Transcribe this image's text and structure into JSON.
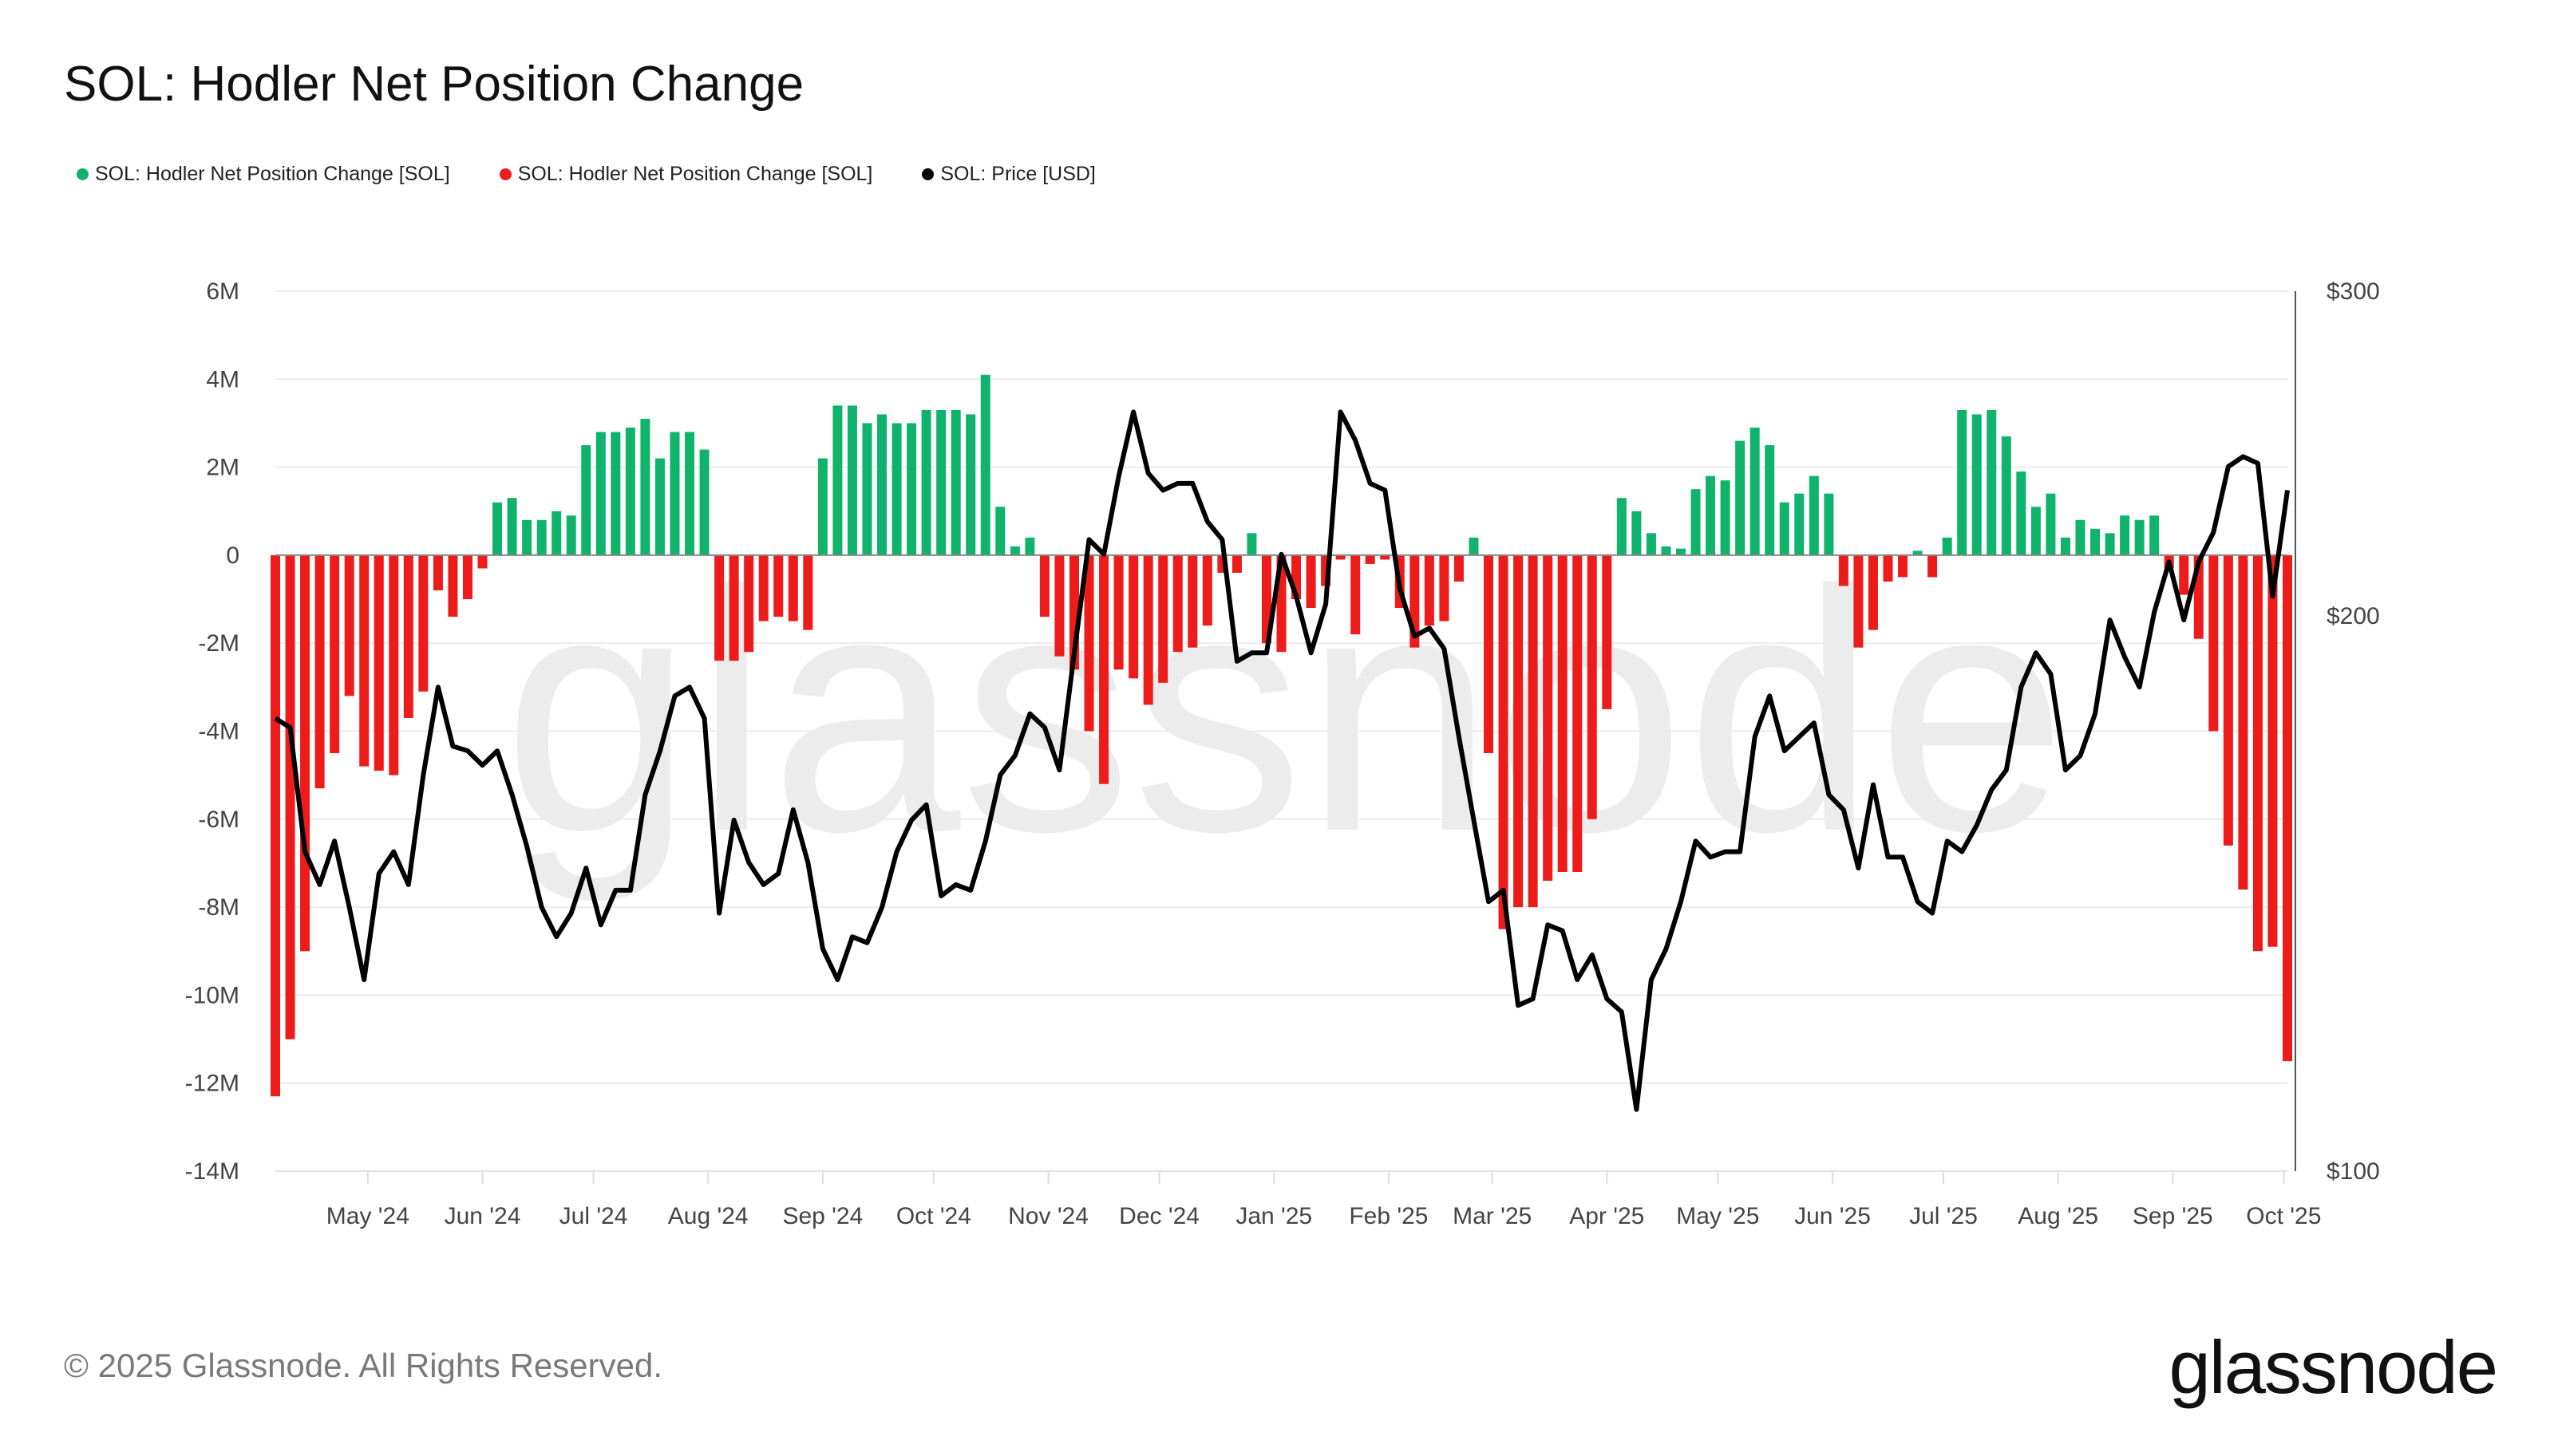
{
  "title": "SOL: Hodler Net Position Change",
  "legend": [
    {
      "label": "SOL: Hodler Net Position Change [SOL]",
      "color": "#10b36c"
    },
    {
      "label": "SOL: Hodler Net Position Change [SOL]",
      "color": "#ee1b1b"
    },
    {
      "label": "SOL: Price [USD]",
      "color": "#000000"
    }
  ],
  "footer": {
    "copyright": "© 2025 Glassnode. All Rights Reserved.",
    "logo": "glassnode",
    "watermark": "glassnode"
  },
  "chart_data": {
    "type": "bar+line",
    "title": "SOL: Hodler Net Position Change",
    "x_range": [
      "2024-04-06",
      "2025-10-02"
    ],
    "xticks": [
      {
        "label": "May '24",
        "date": "2024-05-01"
      },
      {
        "label": "Jun '24",
        "date": "2024-06-01"
      },
      {
        "label": "Jul '24",
        "date": "2024-07-01"
      },
      {
        "label": "Aug '24",
        "date": "2024-08-01"
      },
      {
        "label": "Sep '24",
        "date": "2024-09-01"
      },
      {
        "label": "Oct '24",
        "date": "2024-10-01"
      },
      {
        "label": "Nov '24",
        "date": "2024-11-01"
      },
      {
        "label": "Dec '24",
        "date": "2024-12-01"
      },
      {
        "label": "Jan '25",
        "date": "2025-01-01"
      },
      {
        "label": "Feb '25",
        "date": "2025-02-01"
      },
      {
        "label": "Mar '25",
        "date": "2025-03-01"
      },
      {
        "label": "Apr '25",
        "date": "2025-04-01"
      },
      {
        "label": "May '25",
        "date": "2025-05-01"
      },
      {
        "label": "Jun '25",
        "date": "2025-06-01"
      },
      {
        "label": "Jul '25",
        "date": "2025-07-01"
      },
      {
        "label": "Aug '25",
        "date": "2025-08-01"
      },
      {
        "label": "Sep '25",
        "date": "2025-09-01"
      },
      {
        "label": "Oct '25",
        "date": "2025-10-01"
      }
    ],
    "left_axis": {
      "scale": "linear",
      "range_millions": [
        -14,
        6
      ],
      "ticks": [
        "6M",
        "4M",
        "2M",
        "0",
        "-2M",
        "-4M",
        "-6M",
        "-8M",
        "-10M",
        "-12M",
        "-14M"
      ],
      "tick_values_millions": [
        6,
        4,
        2,
        0,
        -2,
        -4,
        -6,
        -8,
        -10,
        -12,
        -14
      ]
    },
    "right_axis": {
      "scale": "log",
      "range": [
        100,
        300
      ],
      "ticks": [
        "$300",
        "$200",
        "$100"
      ],
      "tick_values": [
        300,
        200,
        100
      ]
    },
    "grid": true,
    "legend_position": "top-left",
    "positive_color": "#10b36c",
    "negative_color": "#ee1b1b",
    "price_color": "#000000",
    "x": [
      "2024-04-06",
      "2024-04-10",
      "2024-04-14",
      "2024-04-18",
      "2024-04-22",
      "2024-04-26",
      "2024-04-30",
      "2024-05-04",
      "2024-05-08",
      "2024-05-12",
      "2024-05-16",
      "2024-05-20",
      "2024-05-24",
      "2024-05-28",
      "2024-06-01",
      "2024-06-05",
      "2024-06-09",
      "2024-06-13",
      "2024-06-17",
      "2024-06-21",
      "2024-06-25",
      "2024-06-29",
      "2024-07-03",
      "2024-07-07",
      "2024-07-11",
      "2024-07-15",
      "2024-07-19",
      "2024-07-23",
      "2024-07-27",
      "2024-07-31",
      "2024-08-04",
      "2024-08-08",
      "2024-08-12",
      "2024-08-16",
      "2024-08-20",
      "2024-08-24",
      "2024-08-28",
      "2024-09-01",
      "2024-09-05",
      "2024-09-09",
      "2024-09-13",
      "2024-09-17",
      "2024-09-21",
      "2024-09-25",
      "2024-09-29",
      "2024-10-03",
      "2024-10-07",
      "2024-10-11",
      "2024-10-15",
      "2024-10-19",
      "2024-10-23",
      "2024-10-27",
      "2024-10-31",
      "2024-11-04",
      "2024-11-08",
      "2024-11-12",
      "2024-11-16",
      "2024-11-20",
      "2024-11-24",
      "2024-11-28",
      "2024-12-02",
      "2024-12-06",
      "2024-12-10",
      "2024-12-14",
      "2024-12-18",
      "2024-12-22",
      "2024-12-26",
      "2024-12-30",
      "2025-01-03",
      "2025-01-07",
      "2025-01-11",
      "2025-01-15",
      "2025-01-19",
      "2025-01-23",
      "2025-01-27",
      "2025-01-31",
      "2025-02-04",
      "2025-02-08",
      "2025-02-12",
      "2025-02-16",
      "2025-02-20",
      "2025-02-24",
      "2025-02-28",
      "2025-03-04",
      "2025-03-08",
      "2025-03-12",
      "2025-03-16",
      "2025-03-20",
      "2025-03-24",
      "2025-03-28",
      "2025-04-01",
      "2025-04-05",
      "2025-04-09",
      "2025-04-13",
      "2025-04-17",
      "2025-04-21",
      "2025-04-25",
      "2025-04-29",
      "2025-05-03",
      "2025-05-07",
      "2025-05-11",
      "2025-05-15",
      "2025-05-19",
      "2025-05-23",
      "2025-05-27",
      "2025-05-31",
      "2025-06-04",
      "2025-06-08",
      "2025-06-12",
      "2025-06-16",
      "2025-06-20",
      "2025-06-24",
      "2025-06-28",
      "2025-07-02",
      "2025-07-06",
      "2025-07-10",
      "2025-07-14",
      "2025-07-18",
      "2025-07-22",
      "2025-07-26",
      "2025-07-30",
      "2025-08-03",
      "2025-08-07",
      "2025-08-11",
      "2025-08-15",
      "2025-08-19",
      "2025-08-23",
      "2025-08-27",
      "2025-08-31",
      "2025-09-04",
      "2025-09-08",
      "2025-09-12",
      "2025-09-16",
      "2025-09-20",
      "2025-09-24",
      "2025-09-28",
      "2025-10-02"
    ],
    "series": [
      {
        "name": "SOL: Hodler Net Position Change [SOL]",
        "unit": "million SOL",
        "axis": "left",
        "values": [
          -12.3,
          -11.0,
          -9.0,
          -5.3,
          -4.5,
          -3.2,
          -4.8,
          -4.9,
          -5.0,
          -3.7,
          -3.1,
          -0.8,
          -1.4,
          -1.0,
          -0.3,
          1.2,
          1.3,
          0.8,
          0.8,
          1.0,
          0.9,
          2.5,
          2.8,
          2.8,
          2.9,
          3.1,
          2.2,
          2.8,
          2.8,
          2.4,
          -2.4,
          -2.4,
          -2.2,
          -1.5,
          -1.4,
          -1.5,
          -1.7,
          2.2,
          3.4,
          3.4,
          3.0,
          3.2,
          3.0,
          3.0,
          3.3,
          3.3,
          3.3,
          3.2,
          4.1,
          1.1,
          0.2,
          0.4,
          -1.4,
          -2.3,
          -2.6,
          -4.0,
          -5.2,
          -2.6,
          -2.8,
          -3.4,
          -2.9,
          -2.2,
          -2.1,
          -1.6,
          -0.4,
          -0.4,
          0.5,
          -2.0,
          -2.2,
          -1.0,
          -1.2,
          -0.7,
          -0.1,
          -1.8,
          -0.2,
          -0.1,
          -1.2,
          -2.1,
          -1.6,
          -1.5,
          -0.6,
          0.4,
          -4.5,
          -8.5,
          -8.0,
          -8.0,
          -7.4,
          -7.2,
          -7.2,
          -6.0,
          -3.5,
          1.3,
          1.0,
          0.5,
          0.2,
          0.15,
          1.5,
          1.8,
          1.7,
          2.6,
          2.9,
          2.5,
          1.2,
          1.4,
          1.8,
          1.4,
          -0.7,
          -2.1,
          -1.7,
          -0.6,
          -0.5,
          0.1,
          -0.5,
          0.4,
          3.3,
          3.2,
          3.3,
          2.7,
          1.9,
          1.1,
          1.4,
          0.4,
          0.8,
          0.6,
          0.5,
          0.9,
          0.8,
          0.9,
          -0.3,
          -0.9,
          -1.9,
          -4.0,
          -6.6,
          -7.6,
          -9.0,
          -8.9,
          -11.5
        ]
      },
      {
        "name": "SOL: Price [USD]",
        "unit": "USD",
        "axis": "right",
        "values": [
          176,
          174,
          149,
          143,
          151,
          139,
          127,
          145,
          149,
          143,
          164,
          183,
          170,
          169,
          166,
          169,
          160,
          150,
          139,
          134,
          138,
          146,
          136,
          142,
          142,
          160,
          169,
          181,
          183,
          176,
          138,
          155,
          147,
          143,
          145,
          157,
          147,
          132,
          127,
          134,
          133,
          139,
          149,
          155,
          158,
          141,
          143,
          142,
          151,
          164,
          168,
          177,
          174,
          165,
          191,
          220,
          216,
          238,
          258,
          239,
          234,
          236,
          236,
          225,
          220,
          189,
          191,
          191,
          216,
          205,
          191,
          203,
          258,
          249,
          236,
          234,
          207,
          195,
          197,
          192,
          172,
          155,
          140,
          142,
          123,
          124,
          136,
          135,
          127,
          131,
          124,
          122,
          108,
          127,
          132,
          140,
          151,
          148,
          149,
          149,
          172,
          181,
          169,
          172,
          175,
          160,
          157,
          146,
          162,
          148,
          148,
          140,
          138,
          151,
          149,
          154,
          161,
          165,
          183,
          191,
          186,
          165,
          168,
          177,
          199,
          190,
          183,
          201,
          214,
          199,
          214,
          222,
          241,
          244,
          242,
          205,
          234
        ]
      }
    ]
  }
}
